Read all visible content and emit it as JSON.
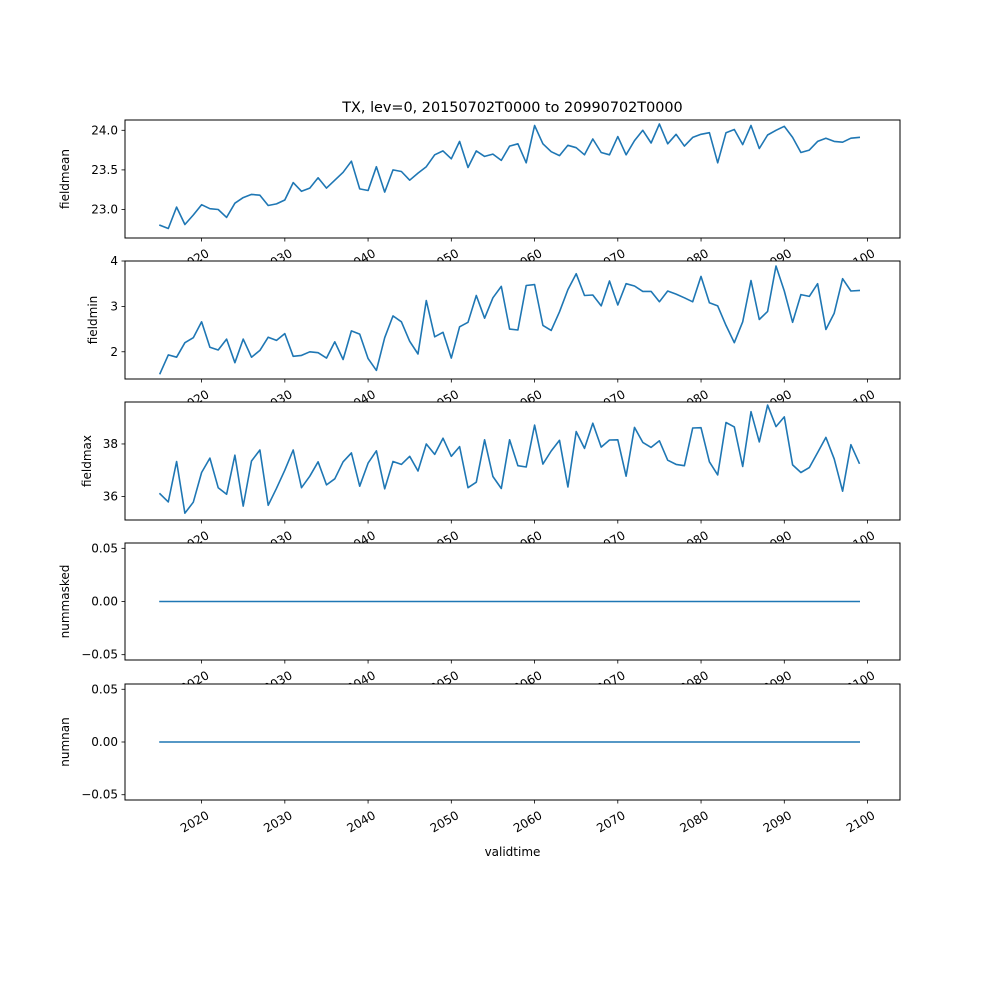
{
  "chart_data": {
    "type": "line",
    "title": "TX, lev=0, 20150702T0000 to 20990702T0000",
    "xlabel": "validtime",
    "x_tick_labels": [
      "2020",
      "2030",
      "2040",
      "2050",
      "2060",
      "2070",
      "2080",
      "2090",
      "2100"
    ],
    "x_tick_values": [
      2020,
      2030,
      2040,
      2050,
      2060,
      2070,
      2080,
      2090,
      2100
    ],
    "xlim": [
      2010.8,
      2103.9
    ],
    "x": [
      2015,
      2016,
      2017,
      2018,
      2019,
      2020,
      2021,
      2022,
      2023,
      2024,
      2025,
      2026,
      2027,
      2028,
      2029,
      2030,
      2031,
      2032,
      2033,
      2034,
      2035,
      2036,
      2037,
      2038,
      2039,
      2040,
      2041,
      2042,
      2043,
      2044,
      2045,
      2046,
      2047,
      2048,
      2049,
      2050,
      2051,
      2052,
      2053,
      2054,
      2055,
      2056,
      2057,
      2058,
      2059,
      2060,
      2061,
      2062,
      2063,
      2064,
      2065,
      2066,
      2067,
      2068,
      2069,
      2070,
      2071,
      2072,
      2073,
      2074,
      2075,
      2076,
      2077,
      2078,
      2079,
      2080,
      2081,
      2082,
      2083,
      2084,
      2085,
      2086,
      2087,
      2088,
      2089,
      2090,
      2091,
      2092,
      2093,
      2094,
      2095,
      2096,
      2097,
      2098,
      2099
    ],
    "line_color": "#1f77b4",
    "grid": false,
    "panels": [
      {
        "ylabel": "fieldmean",
        "ylim": [
          22.64,
          24.13
        ],
        "y_tick_values": [
          23.0,
          23.5,
          24.0
        ],
        "y_tick_labels": [
          "23.0",
          "23.5",
          "24.0"
        ],
        "values": [
          22.8,
          22.76,
          23.03,
          22.81,
          22.93,
          23.06,
          23.01,
          23.0,
          22.9,
          23.08,
          23.15,
          23.19,
          23.18,
          23.05,
          23.07,
          23.12,
          23.34,
          23.23,
          23.27,
          23.4,
          23.27,
          23.37,
          23.47,
          23.61,
          23.26,
          23.24,
          23.54,
          23.22,
          23.5,
          23.48,
          23.37,
          23.46,
          23.54,
          23.69,
          23.74,
          23.64,
          23.86,
          23.53,
          23.74,
          23.67,
          23.7,
          23.62,
          23.8,
          23.83,
          23.59,
          24.06,
          23.83,
          23.73,
          23.68,
          23.81,
          23.78,
          23.69,
          23.89,
          23.72,
          23.69,
          23.92,
          23.69,
          23.87,
          24.0,
          23.84,
          24.08,
          23.83,
          23.95,
          23.8,
          23.91,
          23.95,
          23.97,
          23.59,
          23.97,
          24.01,
          23.82,
          24.06,
          23.77,
          23.94,
          24.0,
          24.05,
          23.91,
          23.72,
          23.75,
          23.86,
          23.9,
          23.86,
          23.85,
          23.9,
          23.91
        ]
      },
      {
        "ylabel": "fieldmin",
        "ylim": [
          1.4,
          4.0
        ],
        "y_tick_values": [
          2,
          3,
          4
        ],
        "y_tick_labels": [
          "2",
          "3",
          "4"
        ],
        "values": [
          1.52,
          1.93,
          1.88,
          2.2,
          2.31,
          2.66,
          2.1,
          2.04,
          2.28,
          1.76,
          2.28,
          1.88,
          2.03,
          2.32,
          2.25,
          2.4,
          1.9,
          1.92,
          2.0,
          1.98,
          1.86,
          2.22,
          1.83,
          2.46,
          2.39,
          1.85,
          1.59,
          2.31,
          2.79,
          2.66,
          2.23,
          1.95,
          3.13,
          2.33,
          2.43,
          1.86,
          2.55,
          2.65,
          3.24,
          2.74,
          3.19,
          3.44,
          2.5,
          2.48,
          3.46,
          3.48,
          2.58,
          2.47,
          2.88,
          3.37,
          3.72,
          3.24,
          3.25,
          3.01,
          3.56,
          3.03,
          3.5,
          3.45,
          3.33,
          3.33,
          3.1,
          3.34,
          3.27,
          3.19,
          3.1,
          3.66,
          3.08,
          3.01,
          2.58,
          2.2,
          2.66,
          3.57,
          2.71,
          2.89,
          3.89,
          3.34,
          2.65,
          3.26,
          3.22,
          3.5,
          2.49,
          2.85,
          3.61,
          3.34,
          3.35
        ]
      },
      {
        "ylabel": "fieldmax",
        "ylim": [
          35.1,
          39.6
        ],
        "y_tick_values": [
          36,
          38
        ],
        "y_tick_labels": [
          "36",
          "38"
        ],
        "values": [
          36.1,
          35.79,
          37.33,
          35.36,
          35.78,
          36.91,
          37.46,
          36.33,
          36.08,
          37.57,
          35.63,
          37.35,
          37.77,
          35.66,
          36.31,
          37.0,
          37.77,
          36.33,
          36.77,
          37.32,
          36.44,
          36.67,
          37.32,
          37.66,
          36.39,
          37.27,
          37.74,
          36.29,
          37.33,
          37.22,
          37.53,
          36.97,
          38.0,
          37.6,
          38.22,
          37.53,
          37.9,
          36.33,
          36.54,
          38.16,
          36.76,
          36.3,
          38.16,
          37.17,
          37.12,
          38.72,
          37.23,
          37.73,
          38.14,
          36.36,
          38.47,
          37.83,
          38.79,
          37.88,
          38.15,
          38.16,
          36.77,
          38.63,
          38.06,
          37.87,
          38.12,
          37.38,
          37.22,
          37.17,
          38.61,
          38.62,
          37.32,
          36.82,
          38.82,
          38.65,
          37.14,
          39.23,
          38.08,
          39.48,
          38.66,
          39.03,
          37.2,
          36.91,
          37.1,
          37.67,
          38.25,
          37.43,
          36.2,
          37.97,
          37.27
        ]
      },
      {
        "ylabel": "nummasked",
        "ylim": [
          -0.055,
          0.055
        ],
        "y_tick_values": [
          0.05,
          0.0,
          -0.05
        ],
        "y_tick_labels": [
          "0.05",
          "0.00",
          "−0.05"
        ],
        "constant_value": 0
      },
      {
        "ylabel": "numnan",
        "ylim": [
          -0.055,
          0.055
        ],
        "y_tick_values": [
          0.05,
          0.0,
          -0.05
        ],
        "y_tick_labels": [
          "0.05",
          "0.00",
          "−0.05"
        ],
        "constant_value": 0
      }
    ]
  }
}
